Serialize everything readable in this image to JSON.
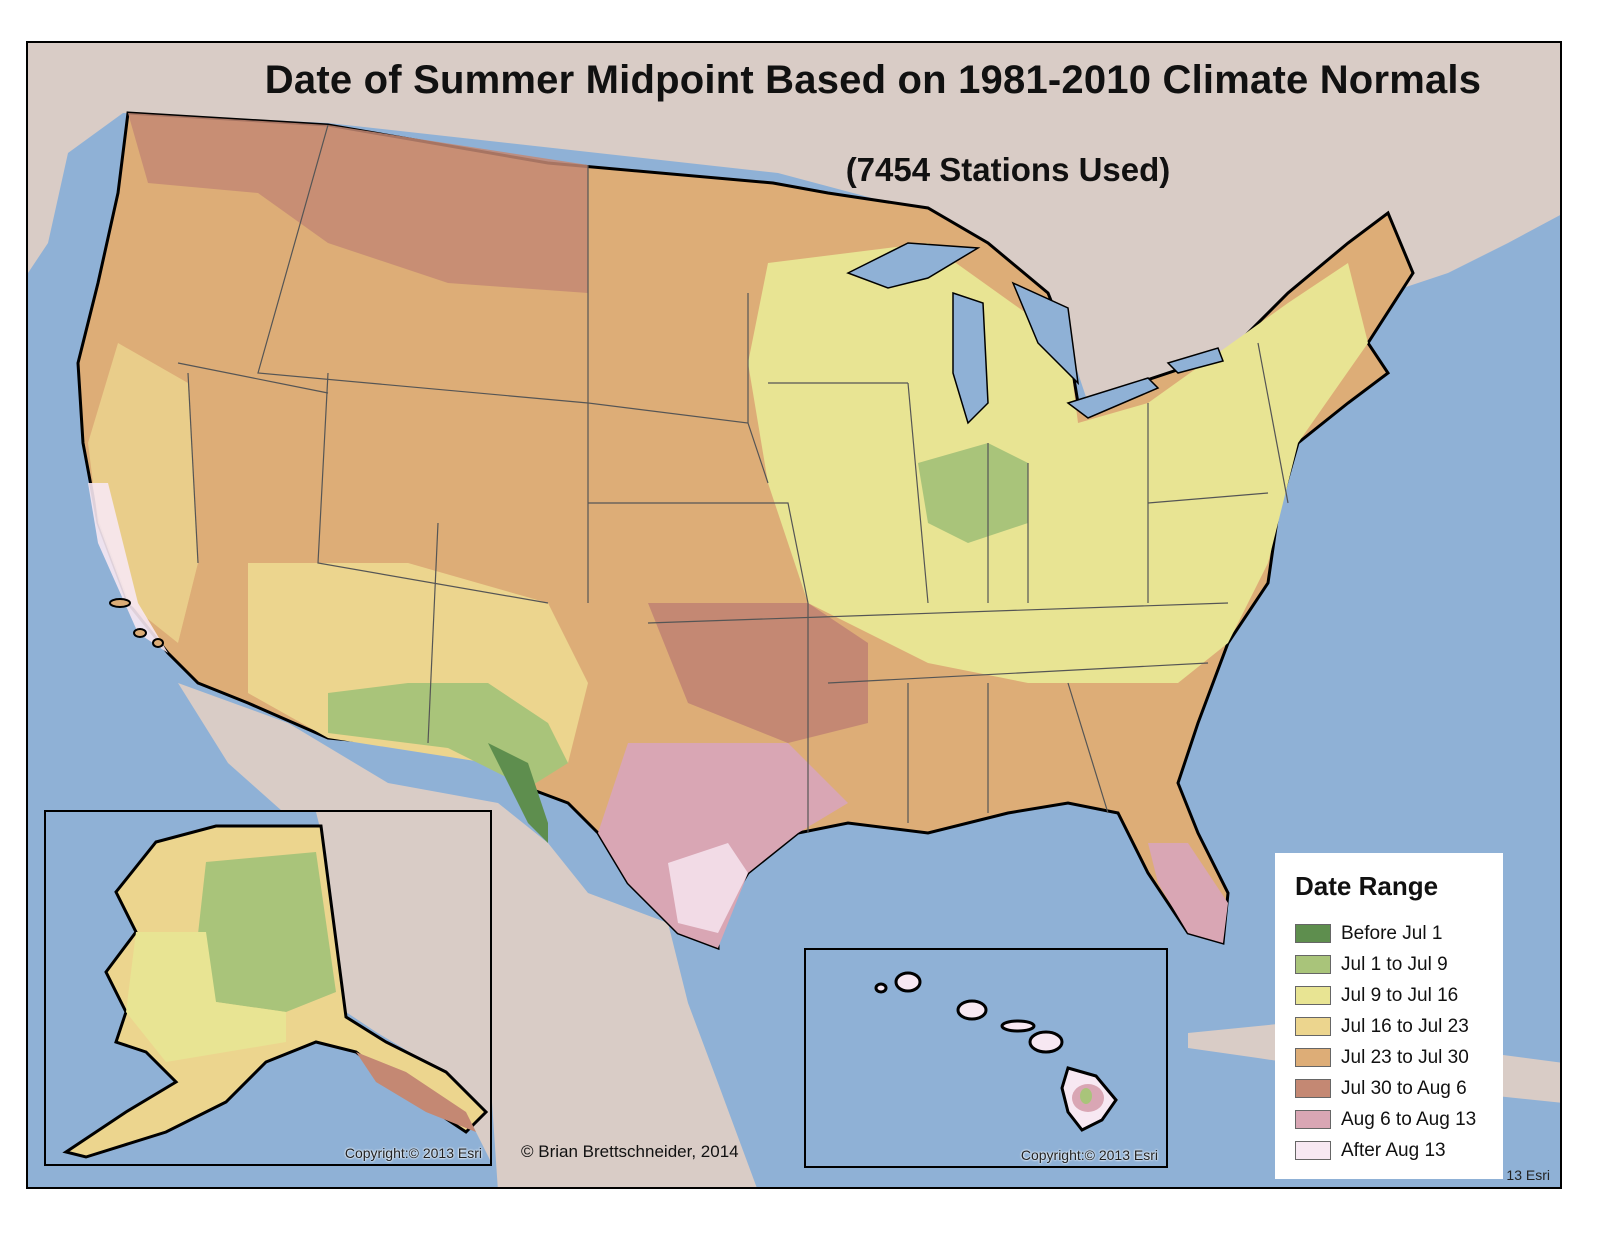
{
  "map": {
    "title": "Date of Summer Midpoint Based on 1981-2010 Climate Normals",
    "subtitle": "(7454 Stations Used)",
    "credit": "© Brian Brettschneider, 2014",
    "main_copyright": "13 Esri",
    "alaska_copyright": "Copyright:© 2013 Esri",
    "hawaii_copyright": "Copyright:© 2013 Esri",
    "colors": {
      "water": "#8fb1d6",
      "land": "#d9ccc6",
      "border": "#000000"
    }
  },
  "legend": {
    "title": "Date Range",
    "items": [
      {
        "label": "Before Jul 1",
        "color": "#5e8e4e"
      },
      {
        "label": "Jul 1 to Jul 9",
        "color": "#a9c47a"
      },
      {
        "label": "Jul 9 to Jul 16",
        "color": "#e8e493"
      },
      {
        "label": "Jul 16 to Jul 23",
        "color": "#ecd58e"
      },
      {
        "label": "Jul 23 to Jul 30",
        "color": "#ddad77"
      },
      {
        "label": "Jul 30 to Aug 6",
        "color": "#c48873"
      },
      {
        "label": "Aug 6 to Aug 13",
        "color": "#d9a6b4"
      },
      {
        "label": "After Aug 13",
        "color": "#f7e8f2"
      }
    ]
  }
}
